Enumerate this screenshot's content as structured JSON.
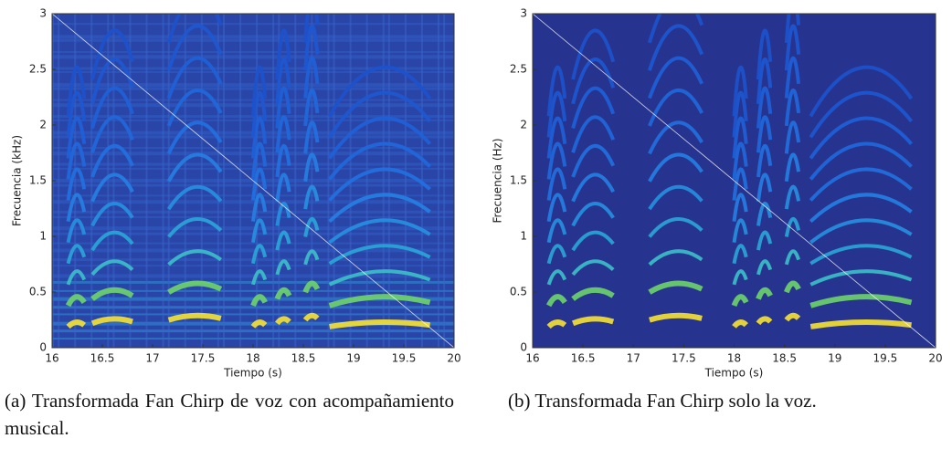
{
  "chart_data": [
    {
      "type": "heatmap",
      "x_label": "Tiempo (s)",
      "y_label": "Frecuencia (kHz)",
      "xlim": [
        16,
        20
      ],
      "ylim": [
        0,
        3
      ],
      "xticks": [
        16,
        16.5,
        17,
        17.5,
        18,
        18.5,
        19,
        19.5,
        20
      ],
      "yticks": [
        0,
        0.5,
        1,
        1.5,
        2,
        2.5,
        3
      ],
      "caption": "(a) Transformada Fan Chirp de voz con acompañamiento musical."
    },
    {
      "type": "heatmap",
      "x_label": "Tiempo (s)",
      "y_label": "Frecuencia (Hz)",
      "xlim": [
        16,
        20
      ],
      "ylim": [
        0,
        3
      ],
      "xticks": [
        16,
        16.5,
        17,
        17.5,
        18,
        18.5,
        19,
        19.5,
        20
      ],
      "yticks": [
        0,
        0.5,
        1,
        1.5,
        2,
        2.5,
        3
      ],
      "caption": "(b) Transformada Fan Chirp solo la voz."
    }
  ]
}
